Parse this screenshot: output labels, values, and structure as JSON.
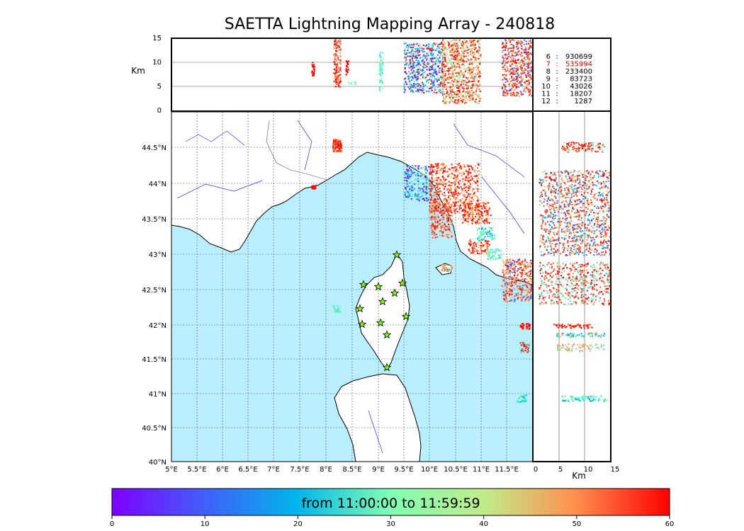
{
  "title": "SAETTA Lightning Mapping Array - 240818",
  "alt_unit": "Km",
  "alt_ticks": [
    "0",
    "5",
    "10",
    "15"
  ],
  "lat_ticks": [
    "40°N",
    "40.5°N",
    "41°N",
    "41.5°N",
    "42°N",
    "42.5°N",
    "43°N",
    "43.5°N",
    "44°N",
    "44.5°N"
  ],
  "lon_ticks": [
    "5°E",
    "5.5°E",
    "6°E",
    "6.5°E",
    "7°E",
    "7.5°E",
    "8°E",
    "8.5°E",
    "9°E",
    "9.5°E",
    "10°E",
    "10.5°E",
    "11°E",
    "11.5°E"
  ],
  "stats": [
    {
      "k": "6",
      "v": "930699",
      "color": "#000000"
    },
    {
      "k": "7",
      "v": "535994",
      "color": "#e00000"
    },
    {
      "k": "8",
      "v": "233400",
      "color": "#000000"
    },
    {
      "k": "9",
      "v": "83723",
      "color": "#000000"
    },
    {
      "k": "10",
      "v": "43026",
      "color": "#000000"
    },
    {
      "k": "11",
      "v": "18207",
      "color": "#000000"
    },
    {
      "k": "12",
      "v": "1287",
      "color": "#000000"
    }
  ],
  "colorbar": {
    "label": "from 11:00:00 to 11:59:59",
    "ticks": [
      "0",
      "10",
      "20",
      "30",
      "40",
      "50",
      "60"
    ]
  },
  "colors": {
    "sea": "#b9eefc",
    "station": "#7fff00"
  }
}
